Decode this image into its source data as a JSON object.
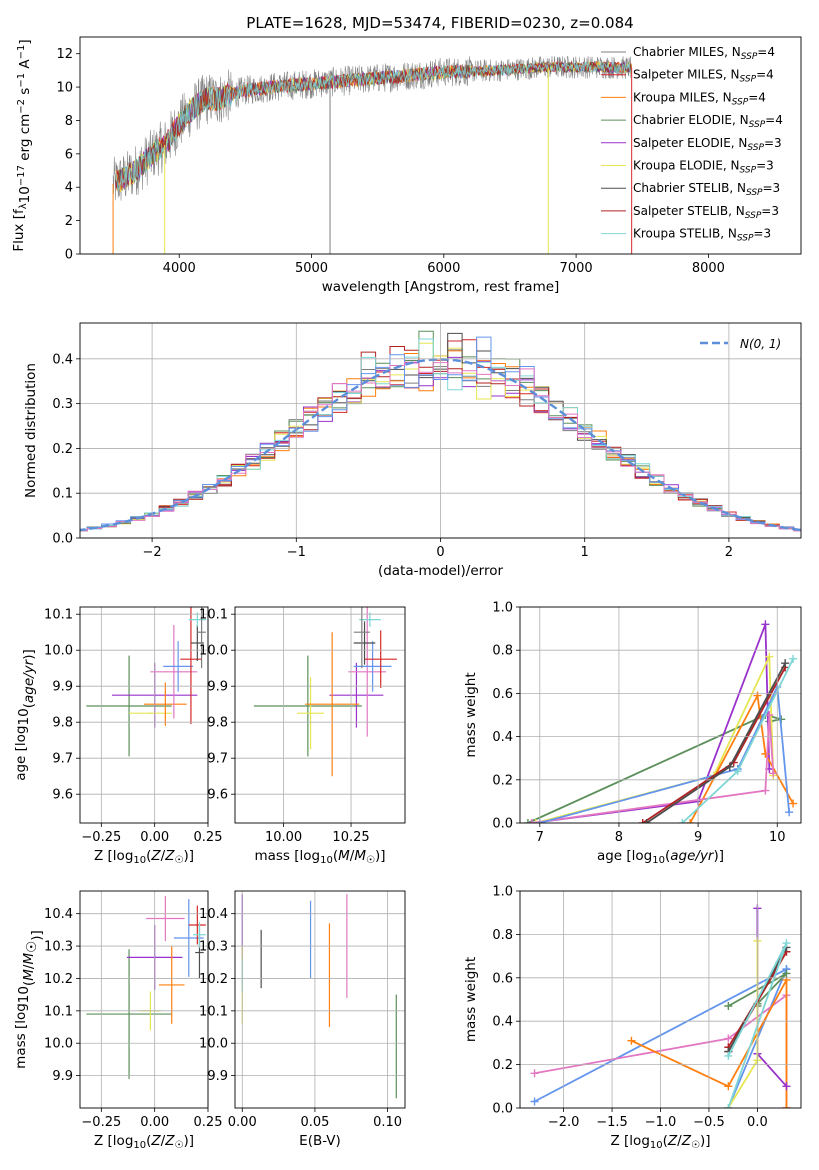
{
  "title": "PLATE=1628, MJD=53474, FIBERID=0230, z=0.084",
  "colors": [
    "#7f7f7f",
    "#d62728",
    "#ff7f0e",
    "#5a8f5a",
    "#9932cc",
    "#e6e652",
    "#4d4d4d",
    "#b22222",
    "#7fd6d6",
    "#6495ed",
    "#e377c2"
  ],
  "chart_data": [
    {
      "id": "spectrum",
      "type": "line",
      "xlabel": "wavelength [Angstrom, rest frame]",
      "ylabel": "Flux [fλ10⁻¹⁷ erg cm⁻² s⁻¹ A⁻¹]",
      "xlim": [
        3250,
        8700
      ],
      "ylim": [
        0,
        13
      ],
      "xticks": [
        4000,
        5000,
        6000,
        7000,
        8000
      ],
      "yticks": [
        0,
        2,
        4,
        6,
        8,
        10,
        12
      ],
      "legend_position": "right",
      "continuum_x": [
        3500,
        3600,
        3700,
        3800,
        3900,
        4000,
        4100,
        4200,
        4300,
        4500,
        4700,
        5000,
        5300,
        5600,
        6000,
        6400,
        6800,
        7200,
        7600,
        8000,
        8400,
        8700
      ],
      "continuum_y": [
        4.2,
        4.6,
        5.2,
        6.0,
        6.6,
        7.8,
        8.7,
        9.3,
        9.3,
        9.8,
        10.0,
        10.2,
        10.4,
        10.6,
        10.9,
        11.0,
        11.2,
        11.2,
        11.1,
        11.0,
        10.9,
        10.8
      ],
      "series": [
        {
          "name": "Chabrier MILES, N_SSP=4",
          "color": "#7f7f7f"
        },
        {
          "name": "Salpeter MILES, N_SSP=4",
          "color": "#d62728"
        },
        {
          "name": "Kroupa MILES, N_SSP=4",
          "color": "#ff7f0e"
        },
        {
          "name": "Chabrier ELODIE, N_SSP=4",
          "color": "#5a8f5a"
        },
        {
          "name": "Salpeter ELODIE, N_SSP=3",
          "color": "#9932cc"
        },
        {
          "name": "Kroupa ELODIE, N_SSP=3",
          "color": "#e6e652"
        },
        {
          "name": "Chabrier STELIB, N_SSP=3",
          "color": "#4d4d4d"
        },
        {
          "name": "Salpeter STELIB, N_SSP=3",
          "color": "#b22222"
        },
        {
          "name": "Kroupa STELIB, N_SSP=3",
          "color": "#7fd6d6"
        }
      ],
      "legend_labels": [
        [
          "Chabrier MILES, N",
          "SSP",
          "=4"
        ],
        [
          "Salpeter MILES, N",
          "SSP",
          "=4"
        ],
        [
          "Kroupa MILES, N",
          "SSP",
          "=4"
        ],
        [
          "Chabrier ELODIE, N",
          "SSP",
          "=4"
        ],
        [
          "Salpeter ELODIE, N",
          "SSP",
          "=3"
        ],
        [
          "Kroupa ELODIE, N",
          "SSP",
          "=3"
        ],
        [
          "Chabrier STELIB, N",
          "SSP",
          "=3"
        ],
        [
          "Salpeter STELIB, N",
          "SSP",
          "=3"
        ],
        [
          "Kroupa STELIB, N",
          "SSP",
          "=3"
        ]
      ]
    },
    {
      "id": "residuals",
      "type": "histogram",
      "xlabel": "(data-model)/error",
      "ylabel": "Normed distribution",
      "xlim": [
        -2.5,
        2.5
      ],
      "ylim": [
        0,
        0.48
      ],
      "xticks": [
        -2,
        -1,
        0,
        1,
        2
      ],
      "yticks": [
        0.0,
        0.1,
        0.2,
        0.3,
        0.4
      ],
      "bin_width": 0.1,
      "grid": true,
      "legend": "N(0, 1)",
      "legend_position": "top-right",
      "curve": "gaussian mean 0 sigma 1"
    },
    {
      "id": "age_vs_Z",
      "type": "errorbar",
      "xlabel": "Z [log10(Z/Z☉)]",
      "ylabel": "age  [log10(age/yr)]",
      "xlim": [
        -0.35,
        0.25
      ],
      "ylim": [
        9.52,
        10.12
      ],
      "xticks": [
        -0.25,
        0.0,
        0.25
      ],
      "yticks": [
        9.6,
        9.7,
        9.8,
        9.9,
        10.0,
        10.1
      ],
      "points": [
        {
          "color": "#5a8f5a",
          "x": -0.12,
          "xerr": 0.2,
          "y": 9.845,
          "yerr": 0.14
        },
        {
          "color": "#9932cc",
          "x": 0.0,
          "xerr": 0.2,
          "y": 9.875,
          "yerr": 0.09
        },
        {
          "color": "#e6e652",
          "x": -0.02,
          "xerr": 0.1,
          "y": 9.825,
          "yerr": 0.0
        },
        {
          "color": "#ff7f0e",
          "x": 0.05,
          "xerr": 0.1,
          "y": 9.85,
          "yerr": 0.06
        },
        {
          "color": "#e377c2",
          "x": 0.09,
          "xerr": 0.11,
          "y": 9.94,
          "yerr": 0.13
        },
        {
          "color": "#6495ed",
          "x": 0.11,
          "xerr": 0.07,
          "y": 9.955,
          "yerr": 0.07
        },
        {
          "color": "#d62728",
          "x": 0.17,
          "xerr": 0.05,
          "y": 9.975,
          "yerr": 0.18
        },
        {
          "color": "#4d4d4d",
          "x": 0.2,
          "xerr": 0.03,
          "y": 10.02,
          "yerr": 0.05
        },
        {
          "color": "#7fd6d6",
          "x": 0.2,
          "xerr": 0.04,
          "y": 10.085,
          "yerr": 0.02
        },
        {
          "color": "#7f7f7f",
          "x": 0.22,
          "xerr": 0.02,
          "y": 10.05,
          "yerr": 0.1
        }
      ]
    },
    {
      "id": "age_vs_mass",
      "type": "errorbar",
      "xlabel": "mass [log10(M/M☉)]",
      "xlim": [
        9.82,
        10.45
      ],
      "ylim": [
        9.52,
        10.12
      ],
      "xticks": [
        10.0,
        10.25
      ],
      "yticks": [
        9.6,
        9.7,
        9.8,
        9.9,
        10.0,
        10.1
      ],
      "points": [
        {
          "color": "#5a8f5a",
          "x": 10.09,
          "xerr": 0.2,
          "y": 9.845,
          "yerr": 0.14
        },
        {
          "color": "#e6e652",
          "x": 10.1,
          "xerr": 0.05,
          "y": 9.825,
          "yerr": 0.1
        },
        {
          "color": "#9932cc",
          "x": 10.27,
          "xerr": 0.1,
          "y": 9.875,
          "yerr": 0.09
        },
        {
          "color": "#ff7f0e",
          "x": 10.18,
          "xerr": 0.1,
          "y": 9.85,
          "yerr": 0.2
        },
        {
          "color": "#e377c2",
          "x": 10.31,
          "xerr": 0.07,
          "y": 9.94,
          "yerr": 0.18
        },
        {
          "color": "#6495ed",
          "x": 10.33,
          "xerr": 0.07,
          "y": 9.955,
          "yerr": 0.07
        },
        {
          "color": "#d62728",
          "x": 10.36,
          "xerr": 0.06,
          "y": 9.975,
          "yerr": 0.08
        },
        {
          "color": "#4d4d4d",
          "x": 10.3,
          "xerr": 0.04,
          "y": 10.02,
          "yerr": 0.06
        },
        {
          "color": "#7fd6d6",
          "x": 10.32,
          "xerr": 0.04,
          "y": 10.085,
          "yerr": 0.02
        },
        {
          "color": "#7f7f7f",
          "x": 10.29,
          "xerr": 0.03,
          "y": 10.05,
          "yerr": 0.1
        }
      ]
    },
    {
      "id": "weight_vs_age",
      "type": "line",
      "xlabel": "age  [log10(age/yr)]",
      "ylabel": "mass weight",
      "xlim": [
        6.75,
        10.3
      ],
      "ylim": [
        0,
        1
      ],
      "xticks": [
        7,
        8,
        9,
        10
      ],
      "yticks": [
        0.0,
        0.2,
        0.4,
        0.6,
        0.8,
        1.0
      ],
      "series": [
        {
          "color": "#5a8f5a",
          "x": [
            6.85,
            9.85,
            10.05,
            9.9
          ],
          "y": [
            0.0,
            0.5,
            0.48,
            0.47
          ]
        },
        {
          "color": "#9932cc",
          "x": [
            6.9,
            9.0,
            9.85,
            9.9
          ],
          "y": [
            0.0,
            0.1,
            0.92,
            0.25
          ]
        },
        {
          "color": "#e6e652",
          "x": [
            6.95,
            9.2,
            9.9,
            9.95
          ],
          "y": [
            0.0,
            0.22,
            0.77,
            0.22
          ]
        },
        {
          "color": "#ff7f0e",
          "x": [
            8.9,
            9.75,
            9.85,
            10.2
          ],
          "y": [
            0.0,
            0.59,
            0.32,
            0.09
          ]
        },
        {
          "color": "#e377c2",
          "x": [
            6.9,
            9.85,
            9.9,
            9.95
          ],
          "y": [
            0.0,
            0.15,
            0.5,
            0.23
          ]
        },
        {
          "color": "#6495ed",
          "x": [
            7.0,
            9.5,
            10.0,
            10.15
          ],
          "y": [
            0.0,
            0.25,
            0.63,
            0.05
          ]
        },
        {
          "color": "#b22222",
          "x": [
            8.3,
            9.45,
            10.1
          ],
          "y": [
            0.0,
            0.28,
            0.72
          ]
        },
        {
          "color": "#4d4d4d",
          "x": [
            8.35,
            9.4,
            10.1
          ],
          "y": [
            0.0,
            0.26,
            0.74
          ]
        },
        {
          "color": "#7fd6d6",
          "x": [
            8.8,
            9.5,
            10.2
          ],
          "y": [
            0.0,
            0.24,
            0.76
          ]
        }
      ]
    },
    {
      "id": "mass_vs_Z",
      "type": "errorbar",
      "xlabel": "Z [log10(Z/Z☉)]",
      "ylabel": "mass [log10(M/M☉)]",
      "xlim": [
        -0.35,
        0.25
      ],
      "ylim": [
        9.8,
        10.47
      ],
      "xticks": [
        -0.25,
        0.0,
        0.25
      ],
      "yticks": [
        9.9,
        10.0,
        10.1,
        10.2,
        10.3,
        10.4
      ],
      "points": [
        {
          "color": "#5a8f5a",
          "x": -0.12,
          "xerr": 0.2,
          "y": 10.09,
          "yerr": 0.2
        },
        {
          "color": "#e6e652",
          "x": -0.02,
          "xerr": 0.05,
          "y": 10.1,
          "yerr": 0.06
        },
        {
          "color": "#9932cc",
          "x": 0.0,
          "xerr": 0.13,
          "y": 10.265,
          "yerr": 0.1
        },
        {
          "color": "#ff7f0e",
          "x": 0.08,
          "xerr": 0.06,
          "y": 10.18,
          "yerr": 0.12
        },
        {
          "color": "#e377c2",
          "x": 0.05,
          "xerr": 0.09,
          "y": 10.385,
          "yerr": 0.07
        },
        {
          "color": "#6495ed",
          "x": 0.16,
          "xerr": 0.07,
          "y": 10.325,
          "yerr": 0.12
        },
        {
          "color": "#d62728",
          "x": 0.2,
          "xerr": 0.04,
          "y": 10.365,
          "yerr": 0.06
        },
        {
          "color": "#4d4d4d",
          "x": 0.21,
          "xerr": 0.02,
          "y": 10.28,
          "yerr": 0.08
        },
        {
          "color": "#7fd6d6",
          "x": 0.21,
          "xerr": 0.03,
          "y": 10.335,
          "yerr": 0.04
        }
      ]
    },
    {
      "id": "mass_vs_EBV",
      "type": "errorbar",
      "xlabel": "E(B-V)",
      "xlim": [
        -0.005,
        0.112
      ],
      "ylim": [
        9.8,
        10.47
      ],
      "xticks": [
        0.0,
        0.05,
        0.1
      ],
      "yticks": [
        9.9,
        10.0,
        10.1,
        10.2,
        10.3,
        10.4
      ],
      "points": [
        {
          "color": "#9932cc",
          "x": 0.0,
          "xerr": 0.0,
          "y": 10.36,
          "yerr": 0.1
        },
        {
          "color": "#e6e652",
          "x": 0.0,
          "xerr": 0.0,
          "y": 10.18,
          "yerr": 0.12
        },
        {
          "color": "#7fd6d6",
          "x": 0.0,
          "xerr": 0.0,
          "y": 10.21,
          "yerr": 0.05
        },
        {
          "color": "#4d4d4d",
          "x": 0.013,
          "xerr": 0.0,
          "y": 10.26,
          "yerr": 0.09
        },
        {
          "color": "#6495ed",
          "x": 0.047,
          "xerr": 0.0,
          "y": 10.32,
          "yerr": 0.12
        },
        {
          "color": "#ff7f0e",
          "x": 0.06,
          "xerr": 0.0,
          "y": 10.21,
          "yerr": 0.16
        },
        {
          "color": "#e377c2",
          "x": 0.072,
          "xerr": 0.0,
          "y": 10.3,
          "yerr": 0.16
        },
        {
          "color": "#5a8f5a",
          "x": 0.106,
          "xerr": 0.0,
          "y": 9.99,
          "yerr": 0.16
        }
      ]
    },
    {
      "id": "weight_vs_Z",
      "type": "line",
      "xlabel": "Z [log10(Z/Z☉)]",
      "ylabel": "mass weight",
      "xlim": [
        -2.45,
        0.45
      ],
      "ylim": [
        0,
        1
      ],
      "xticks": [
        -2.0,
        -1.5,
        -1.0,
        -0.5,
        0.0
      ],
      "yticks": [
        0.0,
        0.2,
        0.4,
        0.6,
        0.8,
        1.0
      ],
      "series": [
        {
          "color": "#6495ed",
          "x": [
            -2.3,
            0.3,
            -0.3,
            0.3
          ],
          "y": [
            0.03,
            0.64,
            0.0,
            0.64
          ]
        },
        {
          "color": "#e377c2",
          "x": [
            -2.3,
            -0.3,
            0.3,
            0.3
          ],
          "y": [
            0.16,
            0.32,
            0.52,
            0.0
          ]
        },
        {
          "color": "#ff7f0e",
          "x": [
            -1.3,
            -0.3,
            0.3,
            0.3
          ],
          "y": [
            0.31,
            0.1,
            0.59,
            0.0
          ]
        },
        {
          "color": "#5a8f5a",
          "x": [
            -0.3,
            0.3,
            0.0,
            0.0
          ],
          "y": [
            0.47,
            0.62,
            0.48,
            0.47
          ]
        },
        {
          "color": "#9932cc",
          "x": [
            0.0,
            0.0,
            0.3
          ],
          "y": [
            0.92,
            0.25,
            0.1
          ]
        },
        {
          "color": "#e6e652",
          "x": [
            0.0,
            0.0,
            -0.3
          ],
          "y": [
            0.77,
            0.22,
            0.0
          ]
        },
        {
          "color": "#b22222",
          "x": [
            -0.3,
            0.3,
            -0.3
          ],
          "y": [
            0.28,
            0.72,
            0.26
          ]
        },
        {
          "color": "#4d4d4d",
          "x": [
            -0.3,
            0.3
          ],
          "y": [
            0.26,
            0.74
          ]
        },
        {
          "color": "#7fd6d6",
          "x": [
            -0.3,
            0.3,
            -0.3
          ],
          "y": [
            0.0,
            0.76,
            0.24
          ]
        }
      ]
    }
  ]
}
